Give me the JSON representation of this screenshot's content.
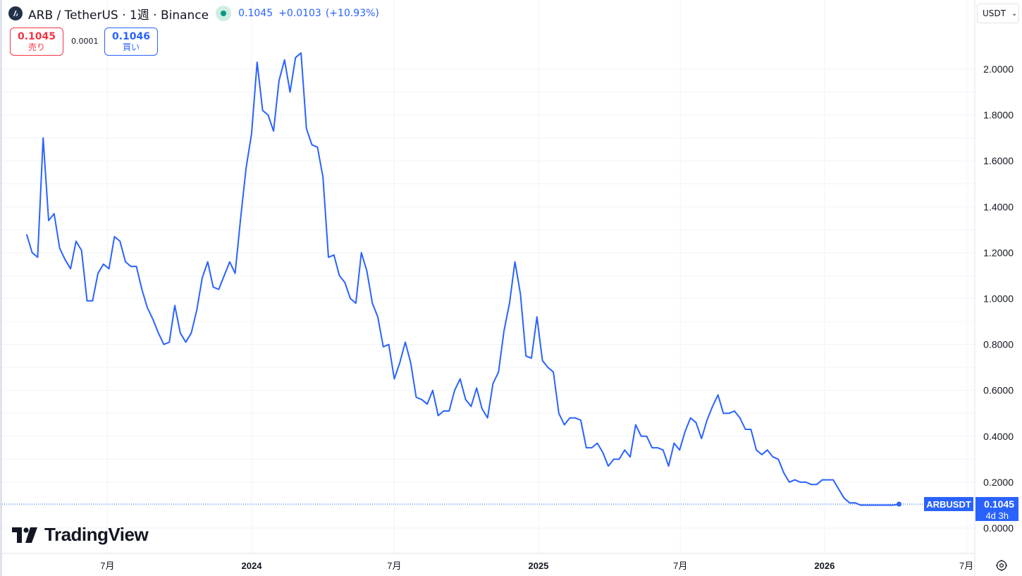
{
  "header": {
    "symbol_title": "ARB / TetherUS · 1週 · Binance",
    "price": "0.1045",
    "change": "+0.0103",
    "change_pct": "(+10.93%)"
  },
  "trade": {
    "sell_price": "0.1045",
    "sell_label": "売り",
    "spread": "0.0001",
    "buy_price": "0.1046",
    "buy_label": "買い"
  },
  "currency": "USDT",
  "logo_text": "TradingView",
  "colors": {
    "line": "#2962ff",
    "sell": "#f23645",
    "buy": "#2962ff",
    "live": "#089981",
    "grid": "#f0f3fa"
  },
  "chart_data": {
    "type": "line",
    "symbol": "ARBUSDT",
    "last_price": "0.1045",
    "countdown": "4d 3h",
    "x_ticks": [
      {
        "label": "7月",
        "date": "2023-07-01",
        "bold": false
      },
      {
        "label": "2024",
        "date": "2024-01-01",
        "bold": true
      },
      {
        "label": "7月",
        "date": "2024-07-01",
        "bold": false
      },
      {
        "label": "2025",
        "date": "2025-01-01",
        "bold": true
      },
      {
        "label": "7月",
        "date": "2025-07-01",
        "bold": false
      },
      {
        "label": "2026",
        "date": "2026-01-01",
        "bold": true
      },
      {
        "label": "7月",
        "date": "2026-07-01",
        "bold": false
      }
    ],
    "y_ticks": [
      "2.0000",
      "1.8000",
      "1.6000",
      "1.4000",
      "1.2000",
      "1.0000",
      "0.8000",
      "0.6000",
      "0.4000",
      "0.2000",
      "0.0000"
    ],
    "ylim": [
      0,
      2.0
    ],
    "x_start": "2023-03-20",
    "x_step_days": 7,
    "values": [
      1.28,
      1.2,
      1.18,
      1.7,
      1.34,
      1.37,
      1.22,
      1.17,
      1.13,
      1.25,
      1.21,
      0.99,
      0.99,
      1.11,
      1.15,
      1.13,
      1.27,
      1.25,
      1.16,
      1.14,
      1.14,
      1.04,
      0.96,
      0.91,
      0.85,
      0.8,
      0.81,
      0.97,
      0.85,
      0.81,
      0.85,
      0.95,
      1.09,
      1.16,
      1.05,
      1.04,
      1.1,
      1.16,
      1.11,
      1.35,
      1.57,
      1.72,
      2.03,
      1.82,
      1.8,
      1.73,
      1.95,
      2.04,
      1.9,
      2.05,
      2.07,
      1.74,
      1.67,
      1.66,
      1.53,
      1.18,
      1.19,
      1.1,
      1.07,
      1.0,
      0.98,
      1.2,
      1.12,
      0.98,
      0.92,
      0.79,
      0.8,
      0.65,
      0.72,
      0.81,
      0.72,
      0.57,
      0.56,
      0.54,
      0.6,
      0.49,
      0.51,
      0.51,
      0.6,
      0.65,
      0.56,
      0.53,
      0.61,
      0.52,
      0.48,
      0.63,
      0.68,
      0.86,
      0.98,
      1.16,
      1.02,
      0.75,
      0.74,
      0.92,
      0.73,
      0.7,
      0.68,
      0.5,
      0.45,
      0.48,
      0.48,
      0.47,
      0.35,
      0.35,
      0.37,
      0.33,
      0.27,
      0.3,
      0.3,
      0.34,
      0.31,
      0.45,
      0.4,
      0.4,
      0.35,
      0.35,
      0.34,
      0.27,
      0.37,
      0.34,
      0.42,
      0.48,
      0.46,
      0.39,
      0.47,
      0.53,
      0.58,
      0.5,
      0.5,
      0.51,
      0.48,
      0.43,
      0.43,
      0.34,
      0.32,
      0.34,
      0.31,
      0.3,
      0.24,
      0.2,
      0.21,
      0.2,
      0.2,
      0.19,
      0.19,
      0.21,
      0.21,
      0.21,
      0.17,
      0.13,
      0.11,
      0.11,
      0.1,
      0.1,
      0.1,
      0.1,
      0.1,
      0.1,
      0.1,
      0.1045
    ]
  }
}
